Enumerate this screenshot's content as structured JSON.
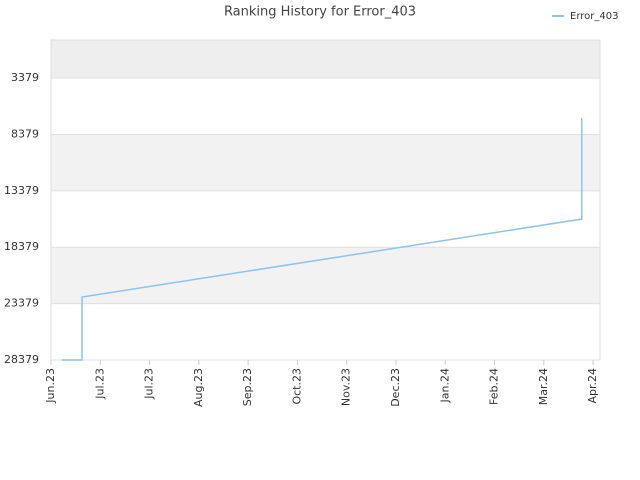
{
  "chart_data": {
    "type": "line",
    "title": "Ranking History for Error_403",
    "x": [
      0.22,
      0.63,
      0.63,
      10.77,
      10.77
    ],
    "series": [
      {
        "name": "Error_403",
        "color": "#8ec3ea",
        "values": [
          28379,
          28379,
          22794,
          15879,
          6925
        ]
      }
    ],
    "xlim": [
      0,
      11.14
    ],
    "xticks": [
      {
        "value": 0,
        "label": "Jun.23"
      },
      {
        "value": 1,
        "label": "Jul.23"
      },
      {
        "value": 2,
        "label": "Jul.23"
      },
      {
        "value": 3,
        "label": "Aug.23"
      },
      {
        "value": 4,
        "label": "Sep.23"
      },
      {
        "value": 5,
        "label": "Oct.23"
      },
      {
        "value": 6,
        "label": "Nov.23"
      },
      {
        "value": 7,
        "label": "Dec.23"
      },
      {
        "value": 8,
        "label": "Jan.24"
      },
      {
        "value": 9,
        "label": "Feb.24"
      },
      {
        "value": 10,
        "label": "Mar.24"
      },
      {
        "value": 11,
        "label": "Apr.24"
      }
    ],
    "ylim": [
      28379,
      0
    ],
    "yticks": [
      3379,
      8379,
      13379,
      18379,
      23379,
      28379
    ],
    "legend": "top-right"
  }
}
